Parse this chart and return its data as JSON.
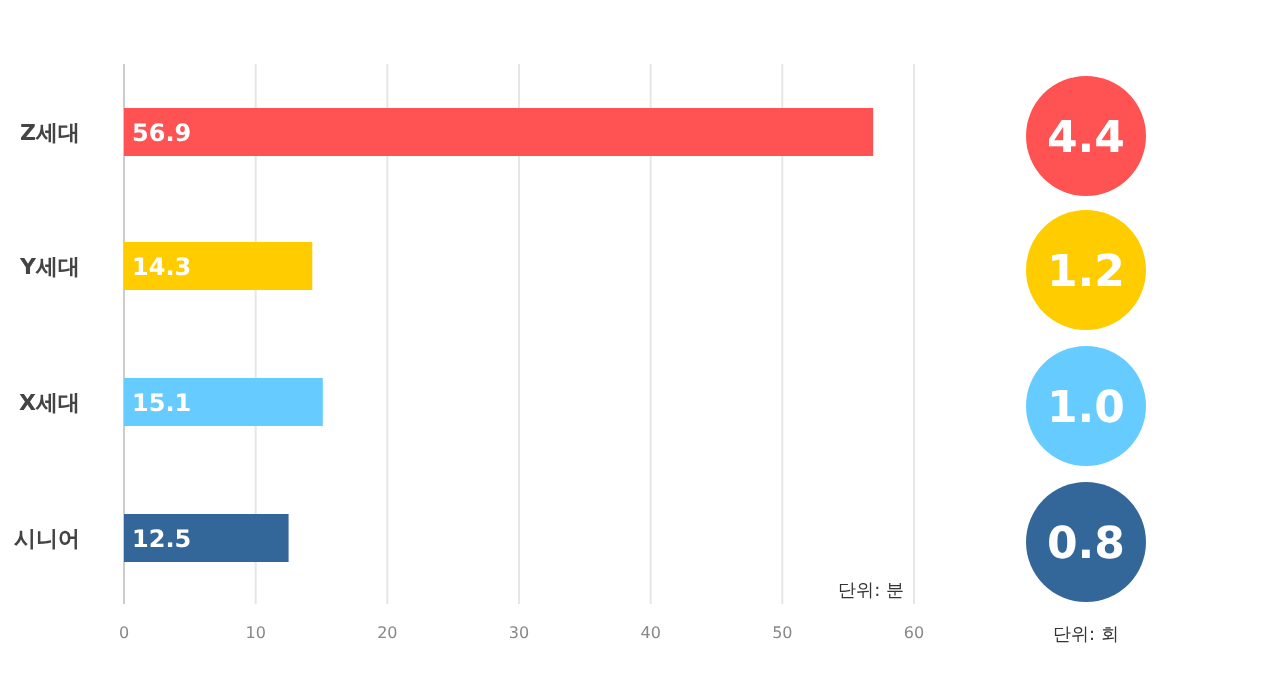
{
  "chart_data": [
    {
      "type": "bar",
      "orientation": "horizontal",
      "categories": [
        "Z세대",
        "Y세대",
        "X세대",
        "시니어"
      ],
      "values": [
        56.9,
        14.3,
        15.1,
        12.5
      ],
      "colors": [
        "#ff5252",
        "#ffcc00",
        "#66ccff",
        "#336699"
      ],
      "xlim": [
        0,
        60
      ],
      "xticks": [
        0,
        10,
        20,
        30,
        40,
        50,
        60
      ],
      "grid": "x",
      "data_labels": true,
      "annotations": [
        "단위: 분"
      ]
    },
    {
      "type": "other",
      "values": [
        4.4,
        1.2,
        1.0,
        0.8
      ],
      "value_labels": [
        "4.4",
        "1.2",
        "1.0",
        "0.8"
      ],
      "colors": [
        "#ff5252",
        "#ffcc00",
        "#66ccff",
        "#336699"
      ],
      "annotations": [
        "단위: 회"
      ]
    }
  ]
}
